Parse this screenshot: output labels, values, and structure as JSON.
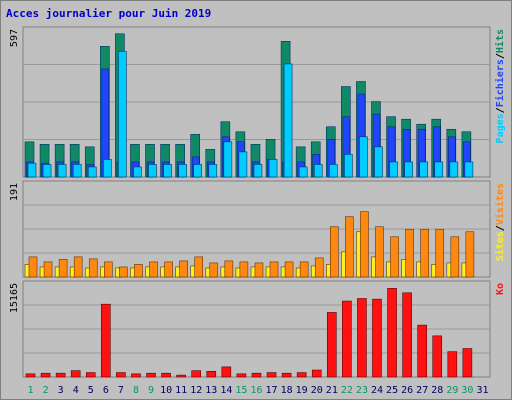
{
  "chart_data": {
    "type": "bar",
    "title": "Acces journalier pour Juin 2019",
    "categories": [
      "1",
      "2",
      "3",
      "4",
      "5",
      "6",
      "7",
      "8",
      "9",
      "10",
      "11",
      "12",
      "13",
      "14",
      "15",
      "16",
      "17",
      "18",
      "19",
      "20",
      "21",
      "22",
      "23",
      "24",
      "25",
      "26",
      "27",
      "28",
      "29",
      "30",
      "31"
    ],
    "weekend_days": [
      "1",
      "2",
      "8",
      "9",
      "15",
      "16",
      "22",
      "23",
      "29",
      "30"
    ],
    "panels": [
      {
        "id": "top",
        "ymax": 597,
        "ymax_label": "597",
        "series": [
          {
            "name": "Pages",
            "color": "#00ccff",
            "values": [
              55,
              50,
              50,
              50,
              40,
              70,
              500,
              40,
              50,
              50,
              50,
              50,
              50,
              140,
              100,
              50,
              70,
              450,
              40,
              50,
              50,
              90,
              160,
              120,
              60,
              60,
              60,
              60,
              60,
              60,
              0
            ]
          },
          {
            "name": "Fichiers",
            "color": "#2244ff",
            "values": [
              60,
              55,
              60,
              60,
              50,
              430,
              60,
              60,
              60,
              60,
              60,
              80,
              60,
              160,
              140,
              60,
              70,
              60,
              60,
              90,
              150,
              240,
              330,
              250,
              200,
              190,
              190,
              200,
              160,
              140,
              0
            ]
          },
          {
            "name": "Hits",
            "color": "#118866",
            "values": [
              140,
              130,
              130,
              130,
              120,
              520,
              570,
              130,
              130,
              130,
              130,
              170,
              110,
              220,
              180,
              130,
              150,
              540,
              120,
              140,
              200,
              360,
              380,
              300,
              240,
              230,
              210,
              230,
              190,
              180,
              0
            ]
          }
        ],
        "legend": [
          "Pages",
          "Fichiers",
          "Hits"
        ]
      },
      {
        "id": "middle",
        "ymax": 191,
        "ymax_label": "191",
        "series": [
          {
            "name": "Sites",
            "color": "#ffee22",
            "values": [
              25,
              20,
              20,
              20,
              18,
              20,
              18,
              18,
              20,
              20,
              20,
              22,
              18,
              20,
              18,
              20,
              20,
              20,
              18,
              22,
              25,
              50,
              90,
              40,
              30,
              35,
              30,
              25,
              28,
              28,
              0
            ]
          },
          {
            "name": "Visites",
            "color": "#ff8811",
            "values": [
              40,
              30,
              35,
              40,
              36,
              30,
              20,
              25,
              30,
              30,
              32,
              40,
              28,
              32,
              30,
              28,
              30,
              30,
              30,
              38,
              100,
              120,
              130,
              100,
              80,
              95,
              95,
              95,
              80,
              90,
              0
            ]
          }
        ],
        "legend": [
          "Sites",
          "Visites"
        ]
      },
      {
        "id": "bottom",
        "ymax": 15165,
        "ymax_label": "15165",
        "series": [
          {
            "name": "Ko",
            "color": "#ff1111",
            "values": [
              500,
              600,
              600,
              1000,
              700,
              11500,
              700,
              500,
              600,
              600,
              300,
              1000,
              900,
              1600,
              500,
              600,
              700,
              600,
              700,
              1100,
              10200,
              12000,
              12400,
              12300,
              14000,
              13300,
              8200,
              6500,
              4000,
              4500,
              0
            ]
          }
        ],
        "legend": [
          "Ko"
        ]
      }
    ],
    "legend_separator": "/",
    "colors": {
      "background": "#c0c0c0",
      "title": "#0000cc",
      "weekday_label": "#000066",
      "weekend_label": "#009966"
    }
  }
}
